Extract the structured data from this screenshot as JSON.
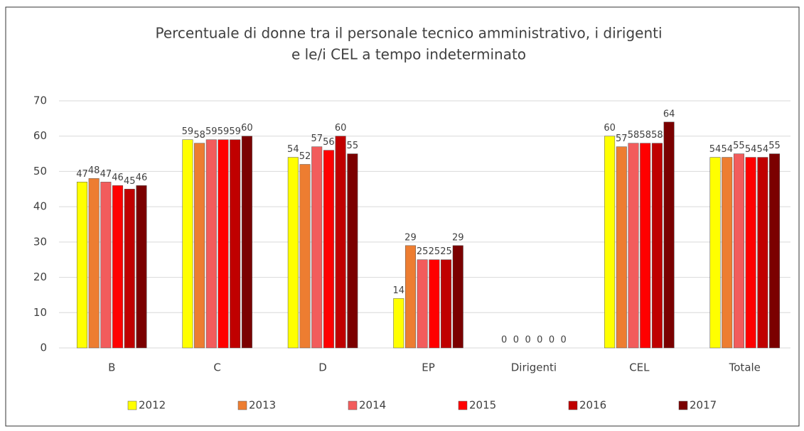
{
  "chart_data": {
    "type": "bar",
    "title": [
      "Percentuale di  donne tra il personale tecnico amministrativo, i dirigenti",
      "e le/i CEL a tempo indeterminato"
    ],
    "categories": [
      "B",
      "C",
      "D",
      "EP",
      "Dirigenti",
      "CEL",
      "Totale"
    ],
    "series": [
      {
        "name": "2012",
        "color": "#ffff00",
        "values": [
          47,
          59,
          54,
          14,
          0,
          60,
          54
        ]
      },
      {
        "name": "2013",
        "color": "#ed7d31",
        "values": [
          48,
          58,
          52,
          29,
          0,
          57,
          54
        ]
      },
      {
        "name": "2014",
        "color": "#f25c5c",
        "values": [
          47,
          59,
          57,
          25,
          0,
          58,
          55
        ]
      },
      {
        "name": "2015",
        "color": "#ff0000",
        "values": [
          46,
          59,
          56,
          25,
          0,
          58,
          54
        ]
      },
      {
        "name": "2016",
        "color": "#c00000",
        "values": [
          45,
          59,
          60,
          25,
          0,
          58,
          54
        ]
      },
      {
        "name": "2017",
        "color": "#7b0000",
        "values": [
          46,
          60,
          55,
          29,
          0,
          64,
          55
        ]
      }
    ],
    "ylim": [
      0,
      70
    ],
    "yticks": [
      0,
      10,
      20,
      30,
      40,
      50,
      60,
      70
    ],
    "grid": true,
    "legend": "bottom"
  }
}
